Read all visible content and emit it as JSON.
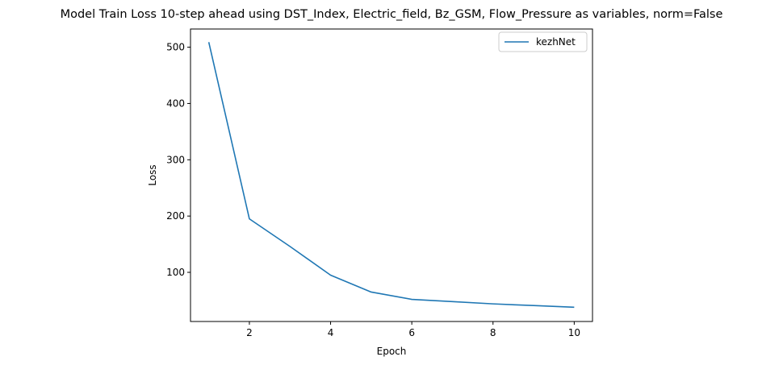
{
  "chart_data": {
    "type": "line",
    "title": "Model Train Loss 10-step ahead using DST_Index, Electric_field, Bz_GSM, Flow_Pressure as variables, norm=False",
    "xlabel": "Epoch",
    "ylabel": "Loss",
    "xlim": [
      0.55,
      10.45
    ],
    "ylim": [
      12.7,
      532.3
    ],
    "xticks": [
      2,
      4,
      6,
      8,
      10
    ],
    "yticks": [
      100,
      200,
      300,
      400,
      500
    ],
    "grid": false,
    "legend_position": "top-right",
    "series": [
      {
        "name": "kezhNet",
        "color": "#1f77b4",
        "x": [
          1,
          2,
          3,
          4,
          5,
          6,
          7,
          8,
          9,
          10
        ],
        "y": [
          509,
          195,
          146,
          95,
          65,
          52,
          48,
          44,
          41,
          38
        ]
      }
    ]
  }
}
